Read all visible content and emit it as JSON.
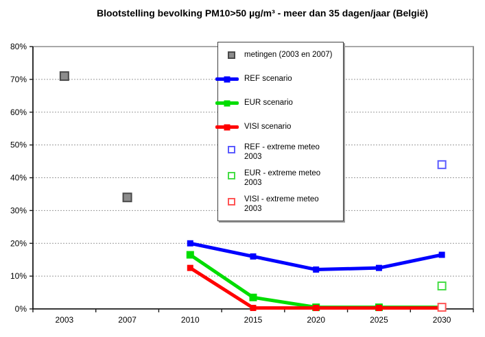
{
  "title": "Blootstelling bevolking PM10>50 µg/m³ - meer dan 35 dagen/jaar (België)",
  "colors": {
    "ref_line": "#0000ff",
    "eur_line": "#00dd00",
    "visi_line": "#ff0000",
    "metingen_fill": "#8c8c8c",
    "metingen_border": "#4a4a4a",
    "ref_extreme": "#5a5aff",
    "eur_extreme": "#44dd44",
    "visi_extreme": "#ff5555",
    "gridline": "#999999",
    "plot_border": "#8c8c8c",
    "axis": "#1a1a1a"
  },
  "legend": {
    "items": [
      {
        "id": "metingen",
        "label": "metingen (2003 en 2007)",
        "marker": "gray-filled-square",
        "color": "#8c8c8c"
      },
      {
        "id": "ref",
        "label": "REF scenario",
        "marker": "thick-line-with-square",
        "color": "#0000ff"
      },
      {
        "id": "eur",
        "label": "EUR scenario",
        "marker": "thick-line-with-square",
        "color": "#00dd00"
      },
      {
        "id": "visi",
        "label": "VISI scenario",
        "marker": "thick-line-with-square",
        "color": "#ff0000"
      },
      {
        "id": "ref-extreme",
        "label": "REF - extreme meteo 2003",
        "marker": "open-square",
        "color": "#5a5aff"
      },
      {
        "id": "eur-extreme",
        "label": "EUR - extreme meteo 2003",
        "marker": "open-square",
        "color": "#44dd44"
      },
      {
        "id": "visi-extreme",
        "label": "VISI - extreme meteo 2003",
        "marker": "open-square",
        "color": "#ff5555"
      }
    ]
  },
  "chart_data": {
    "type": "line",
    "title": "Blootstelling bevolking PM10>50 µg/m³ - meer dan 35 dagen/jaar (België)",
    "xlabel": "",
    "ylabel": "",
    "categories": [
      "2003",
      "2007",
      "2010",
      "2015",
      "2020",
      "2025",
      "2030"
    ],
    "ylim": [
      0,
      80
    ],
    "y_tick_step": 10,
    "y_tick_format": "percent",
    "grid": "horizontal-dashed",
    "legend_position": "inside-top-center",
    "series": [
      {
        "id": "metingen",
        "name": "metingen (2003 en 2007)",
        "type": "scatter",
        "marker": "filled-square",
        "marker_size": 12,
        "color": "#8c8c8c",
        "marker_border": "#4a4a4a",
        "points": [
          {
            "category": "2003",
            "value": 71
          },
          {
            "category": "2007",
            "value": 34
          }
        ]
      },
      {
        "id": "ref",
        "name": "REF scenario",
        "type": "line",
        "marker": "filled-square",
        "marker_size": 9,
        "line_width": 5,
        "color": "#0000ff",
        "points": [
          {
            "category": "2010",
            "value": 20
          },
          {
            "category": "2015",
            "value": 16
          },
          {
            "category": "2020",
            "value": 12
          },
          {
            "category": "2025",
            "value": 12.5
          },
          {
            "category": "2030",
            "value": 16.5
          }
        ]
      },
      {
        "id": "eur",
        "name": "EUR scenario",
        "type": "line",
        "marker": "filled-square",
        "marker_size": 11,
        "line_width": 5,
        "color": "#00dd00",
        "points": [
          {
            "category": "2010",
            "value": 16.5
          },
          {
            "category": "2015",
            "value": 3.5
          },
          {
            "category": "2020",
            "value": 0.5
          },
          {
            "category": "2025",
            "value": 0.5
          },
          {
            "category": "2030",
            "value": 0.5
          }
        ]
      },
      {
        "id": "visi",
        "name": "VISI scenario",
        "type": "line",
        "marker": "filled-square",
        "marker_size": 9,
        "line_width": 5,
        "color": "#ff0000",
        "points": [
          {
            "category": "2010",
            "value": 12.5
          },
          {
            "category": "2015",
            "value": 0.3
          },
          {
            "category": "2020",
            "value": 0.3
          },
          {
            "category": "2025",
            "value": 0.3
          },
          {
            "category": "2030",
            "value": 0.3
          }
        ]
      },
      {
        "id": "ref-extreme",
        "name": "REF - extreme meteo 2003",
        "type": "scatter",
        "marker": "open-square",
        "marker_size": 11,
        "color": "#5a5aff",
        "points": [
          {
            "category": "2030",
            "value": 44
          }
        ]
      },
      {
        "id": "eur-extreme",
        "name": "EUR - extreme meteo 2003",
        "type": "scatter",
        "marker": "open-square",
        "marker_size": 11,
        "color": "#44dd44",
        "points": [
          {
            "category": "2030",
            "value": 7
          }
        ]
      },
      {
        "id": "visi-extreme",
        "name": "VISI - extreme meteo 2003",
        "type": "scatter",
        "marker": "open-square",
        "marker_size": 11,
        "color": "#ff5555",
        "points": [
          {
            "category": "2030",
            "value": 0.5
          }
        ]
      }
    ]
  }
}
